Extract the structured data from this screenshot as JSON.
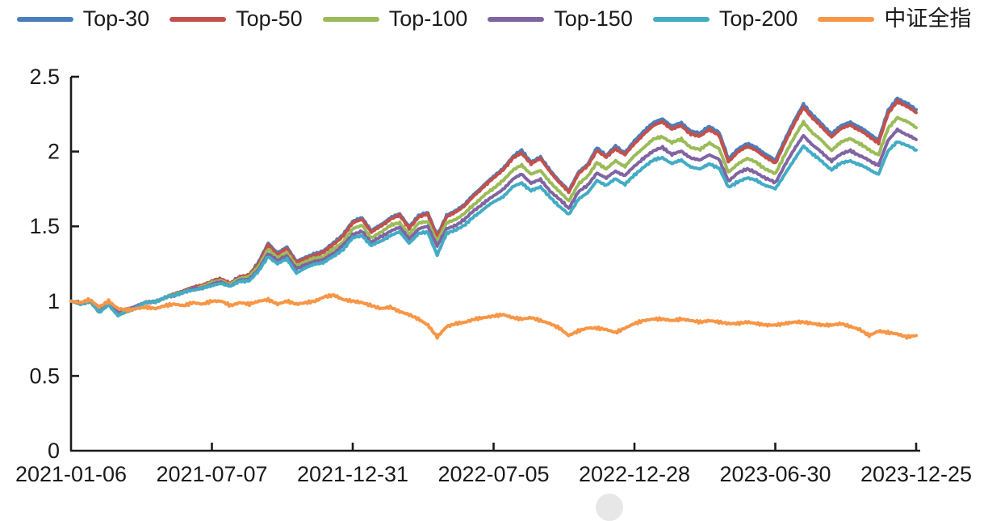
{
  "figure": {
    "background": "#ffffff",
    "axis_color": "#1a1a1a"
  },
  "chart_data": {
    "type": "line",
    "title": "",
    "xlabel": "",
    "ylabel": "",
    "grid": false,
    "legend_position": "top",
    "ylim": [
      0,
      2.5
    ],
    "y_tick_labels": [
      "0",
      "0.5",
      "1",
      "1.5",
      "2",
      "2.5"
    ],
    "y_ticks": [
      0,
      0.5,
      1,
      1.5,
      2,
      2.5
    ],
    "x_tick_labels": [
      "2021-01-06",
      "2021-07-07",
      "2021-12-31",
      "2022-07-05",
      "2022-12-28",
      "2023-06-30",
      "2023-12-25"
    ],
    "series": [
      {
        "name": "Top-30",
        "color": "#4A7EBB",
        "values": [
          1.0,
          0.98,
          1.0,
          0.93,
          0.98,
          0.92,
          0.94,
          0.96,
          0.99,
          1.0,
          1.02,
          1.05,
          1.07,
          1.09,
          1.11,
          1.13,
          1.15,
          1.12,
          1.16,
          1.18,
          1.26,
          1.39,
          1.32,
          1.36,
          1.27,
          1.29,
          1.32,
          1.34,
          1.39,
          1.45,
          1.53,
          1.56,
          1.47,
          1.51,
          1.56,
          1.58,
          1.5,
          1.57,
          1.59,
          1.44,
          1.57,
          1.61,
          1.65,
          1.72,
          1.78,
          1.83,
          1.89,
          1.96,
          2.01,
          1.93,
          1.96,
          1.88,
          1.8,
          1.74,
          1.86,
          1.91,
          2.03,
          1.97,
          2.04,
          1.99,
          2.07,
          2.14,
          2.19,
          2.22,
          2.17,
          2.19,
          2.14,
          2.12,
          2.17,
          2.13,
          1.95,
          2.02,
          2.05,
          2.03,
          1.98,
          1.94,
          2.08,
          2.2,
          2.32,
          2.24,
          2.18,
          2.12,
          2.17,
          2.2,
          2.16,
          2.12,
          2.08,
          2.27,
          2.36,
          2.32,
          2.28
        ]
      },
      {
        "name": "Top-50",
        "color": "#C4504C",
        "values": [
          1.0,
          0.98,
          1.0,
          0.93,
          0.98,
          0.92,
          0.94,
          0.96,
          0.99,
          1.0,
          1.02,
          1.05,
          1.07,
          1.09,
          1.11,
          1.13,
          1.15,
          1.12,
          1.16,
          1.18,
          1.25,
          1.38,
          1.31,
          1.35,
          1.26,
          1.28,
          1.31,
          1.33,
          1.38,
          1.44,
          1.52,
          1.55,
          1.46,
          1.5,
          1.55,
          1.57,
          1.49,
          1.56,
          1.58,
          1.43,
          1.56,
          1.6,
          1.64,
          1.71,
          1.77,
          1.82,
          1.88,
          1.95,
          1.99,
          1.92,
          1.95,
          1.87,
          1.79,
          1.73,
          1.85,
          1.9,
          2.01,
          1.96,
          2.02,
          1.98,
          2.05,
          2.12,
          2.17,
          2.2,
          2.15,
          2.17,
          2.12,
          2.1,
          2.15,
          2.11,
          1.93,
          2.0,
          2.03,
          2.01,
          1.96,
          1.92,
          2.06,
          2.18,
          2.3,
          2.22,
          2.16,
          2.1,
          2.15,
          2.18,
          2.14,
          2.1,
          2.06,
          2.25,
          2.34,
          2.3,
          2.26
        ]
      },
      {
        "name": "Top-100",
        "color": "#9BBB59",
        "values": [
          1.0,
          0.98,
          1.0,
          0.94,
          0.98,
          0.93,
          0.94,
          0.96,
          0.99,
          1.0,
          1.02,
          1.05,
          1.06,
          1.08,
          1.1,
          1.12,
          1.14,
          1.11,
          1.15,
          1.17,
          1.23,
          1.35,
          1.29,
          1.32,
          1.24,
          1.26,
          1.29,
          1.3,
          1.35,
          1.4,
          1.48,
          1.51,
          1.42,
          1.46,
          1.51,
          1.52,
          1.45,
          1.52,
          1.53,
          1.4,
          1.52,
          1.55,
          1.59,
          1.65,
          1.71,
          1.75,
          1.81,
          1.87,
          1.91,
          1.85,
          1.87,
          1.8,
          1.73,
          1.67,
          1.78,
          1.83,
          1.93,
          1.88,
          1.94,
          1.9,
          1.97,
          2.03,
          2.08,
          2.1,
          2.06,
          2.08,
          2.03,
          2.01,
          2.06,
          2.02,
          1.86,
          1.92,
          1.95,
          1.93,
          1.88,
          1.85,
          1.98,
          2.09,
          2.2,
          2.12,
          2.07,
          2.01,
          2.06,
          2.09,
          2.05,
          2.01,
          1.98,
          2.15,
          2.23,
          2.2,
          2.16
        ]
      },
      {
        "name": "Top-150",
        "color": "#8064A2",
        "values": [
          1.0,
          0.98,
          1.0,
          0.94,
          0.98,
          0.93,
          0.95,
          0.97,
          0.99,
          1.0,
          1.02,
          1.04,
          1.06,
          1.08,
          1.09,
          1.11,
          1.13,
          1.1,
          1.14,
          1.15,
          1.21,
          1.32,
          1.27,
          1.3,
          1.22,
          1.24,
          1.27,
          1.28,
          1.32,
          1.38,
          1.44,
          1.47,
          1.39,
          1.43,
          1.47,
          1.49,
          1.42,
          1.48,
          1.5,
          1.37,
          1.48,
          1.51,
          1.55,
          1.61,
          1.66,
          1.7,
          1.75,
          1.81,
          1.85,
          1.79,
          1.81,
          1.74,
          1.68,
          1.62,
          1.73,
          1.77,
          1.86,
          1.82,
          1.87,
          1.84,
          1.9,
          1.96,
          2.0,
          2.03,
          1.98,
          2.0,
          1.96,
          1.94,
          1.98,
          1.95,
          1.8,
          1.86,
          1.88,
          1.86,
          1.82,
          1.79,
          1.91,
          2.01,
          2.11,
          2.04,
          1.99,
          1.94,
          1.98,
          2.01,
          1.97,
          1.94,
          1.91,
          2.07,
          2.15,
          2.11,
          2.08
        ]
      },
      {
        "name": "Top-200",
        "color": "#43ACC5",
        "values": [
          1.0,
          0.98,
          1.0,
          0.92,
          0.98,
          0.9,
          0.93,
          0.96,
          0.99,
          1.0,
          1.02,
          1.04,
          1.06,
          1.07,
          1.09,
          1.1,
          1.12,
          1.1,
          1.13,
          1.14,
          1.2,
          1.3,
          1.25,
          1.28,
          1.19,
          1.22,
          1.25,
          1.26,
          1.3,
          1.35,
          1.42,
          1.44,
          1.37,
          1.4,
          1.44,
          1.46,
          1.39,
          1.45,
          1.46,
          1.31,
          1.45,
          1.48,
          1.51,
          1.57,
          1.62,
          1.66,
          1.7,
          1.76,
          1.79,
          1.74,
          1.76,
          1.7,
          1.63,
          1.58,
          1.68,
          1.72,
          1.81,
          1.77,
          1.82,
          1.78,
          1.84,
          1.9,
          1.94,
          1.96,
          1.92,
          1.94,
          1.9,
          1.88,
          1.92,
          1.89,
          1.76,
          1.8,
          1.82,
          1.81,
          1.77,
          1.75,
          1.85,
          1.94,
          2.04,
          1.98,
          1.93,
          1.88,
          1.92,
          1.94,
          1.91,
          1.88,
          1.85,
          2.0,
          2.07,
          2.04,
          2.01
        ]
      },
      {
        "name": "中证全指",
        "color": "#F79646",
        "values": [
          1.0,
          0.99,
          1.01,
          0.96,
          1.0,
          0.95,
          0.94,
          0.95,
          0.96,
          0.95,
          0.97,
          0.98,
          0.97,
          0.99,
          0.98,
          1.0,
          1.0,
          0.97,
          0.99,
          0.98,
          1.0,
          1.01,
          0.98,
          1.0,
          0.98,
          0.99,
          1.0,
          1.03,
          1.04,
          1.01,
          1.0,
          0.99,
          0.97,
          0.95,
          0.96,
          0.93,
          0.91,
          0.88,
          0.84,
          0.76,
          0.83,
          0.85,
          0.86,
          0.88,
          0.89,
          0.9,
          0.91,
          0.89,
          0.88,
          0.89,
          0.87,
          0.85,
          0.82,
          0.77,
          0.8,
          0.82,
          0.82,
          0.81,
          0.79,
          0.82,
          0.85,
          0.87,
          0.88,
          0.88,
          0.87,
          0.88,
          0.87,
          0.86,
          0.87,
          0.86,
          0.85,
          0.85,
          0.86,
          0.85,
          0.84,
          0.84,
          0.85,
          0.86,
          0.86,
          0.85,
          0.84,
          0.84,
          0.85,
          0.83,
          0.81,
          0.77,
          0.8,
          0.79,
          0.78,
          0.76,
          0.77
        ]
      }
    ]
  }
}
